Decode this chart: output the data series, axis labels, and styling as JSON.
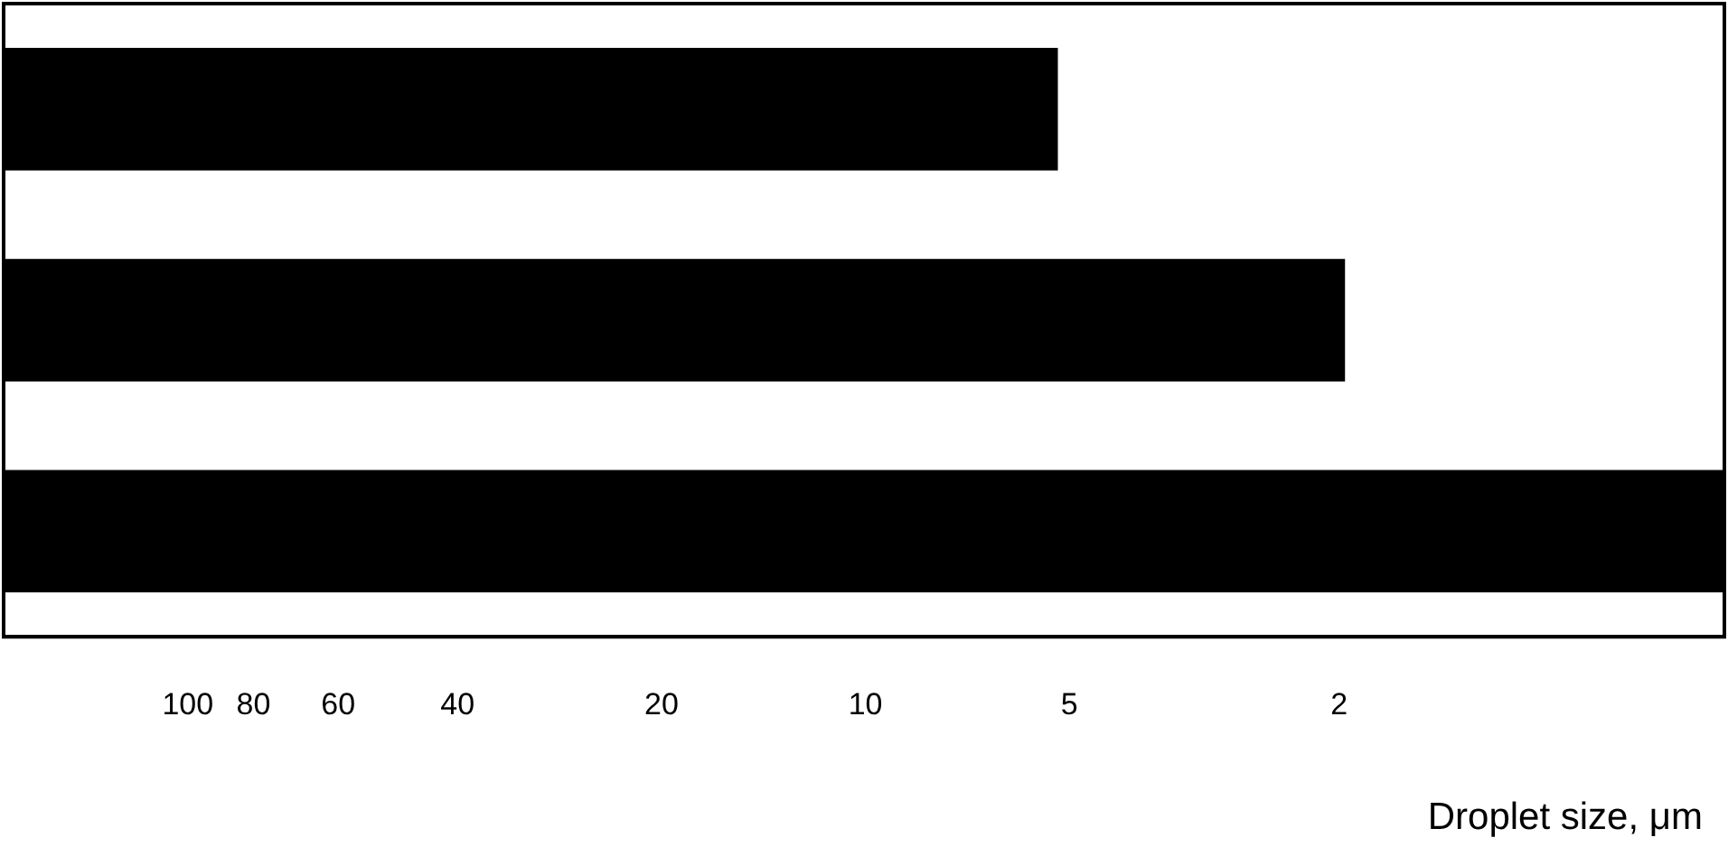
{
  "chart_data": {
    "type": "bar",
    "orientation": "horizontal",
    "xlabel": "Droplet size, μm",
    "categories": [
      null,
      null,
      null
    ],
    "base": [
      187,
      187,
      187
    ],
    "values": [
      -181.8,
      -185.04,
      -186.46
    ],
    "color": "#000000",
    "log": "x",
    "xlim": [
      187,
      0.54
    ],
    "xticks": [
      100,
      80,
      60,
      40,
      20,
      10,
      5,
      2
    ],
    "grid": false
  }
}
